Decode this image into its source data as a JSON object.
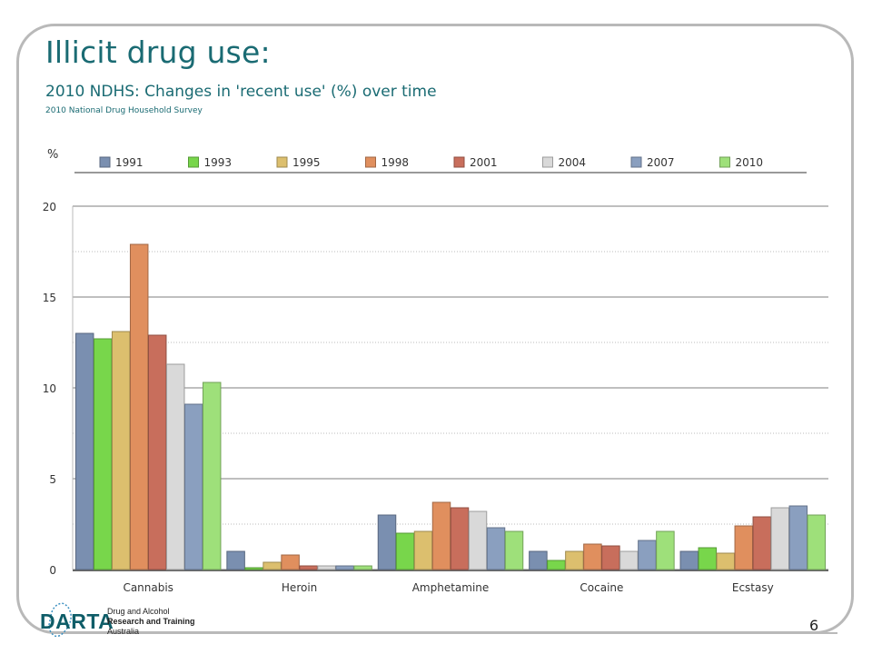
{
  "slide": {
    "title": "Illicit drug use:",
    "subtitle": "2010 NDHS: Changes in 'recent use' (%) over time",
    "source": "2010 National Drug Household Survey",
    "page_number": "6"
  },
  "logo": {
    "word": "DARTA",
    "line1": "Drug and Alcohol",
    "line2": "Research and Training",
    "line3": "Australia"
  },
  "chart_data": {
    "type": "bar",
    "ylabel": "%",
    "ylim": [
      0,
      20
    ],
    "yticks": [
      0,
      5,
      10,
      15,
      20
    ],
    "grid": true,
    "legend_position": "top",
    "categories": [
      "Cannabis",
      "Heroin",
      "Amphetamine",
      "Cocaine",
      "Ecstasy"
    ],
    "series": [
      {
        "name": "1991",
        "color": "#7a8fb0",
        "values": [
          13.0,
          1.0,
          3.0,
          1.0,
          1.0
        ]
      },
      {
        "name": "1993",
        "color": "#78d64b",
        "values": [
          12.7,
          0.1,
          2.0,
          0.5,
          1.2
        ]
      },
      {
        "name": "1995",
        "color": "#dcbf6e",
        "values": [
          13.1,
          0.4,
          2.1,
          1.0,
          0.9
        ]
      },
      {
        "name": "1998",
        "color": "#e08f5e",
        "values": [
          17.9,
          0.8,
          3.7,
          1.4,
          2.4
        ]
      },
      {
        "name": "2001",
        "color": "#c86e5c",
        "values": [
          12.9,
          0.2,
          3.4,
          1.3,
          2.9
        ]
      },
      {
        "name": "2004",
        "color": "#d9d9d9",
        "values": [
          11.3,
          0.2,
          3.2,
          1.0,
          3.4
        ]
      },
      {
        "name": "2007",
        "color": "#8a9fbf",
        "values": [
          9.1,
          0.2,
          2.3,
          1.6,
          3.5
        ]
      },
      {
        "name": "2010",
        "color": "#9ee07a",
        "values": [
          10.3,
          0.2,
          2.1,
          2.1,
          3.0
        ]
      }
    ]
  }
}
